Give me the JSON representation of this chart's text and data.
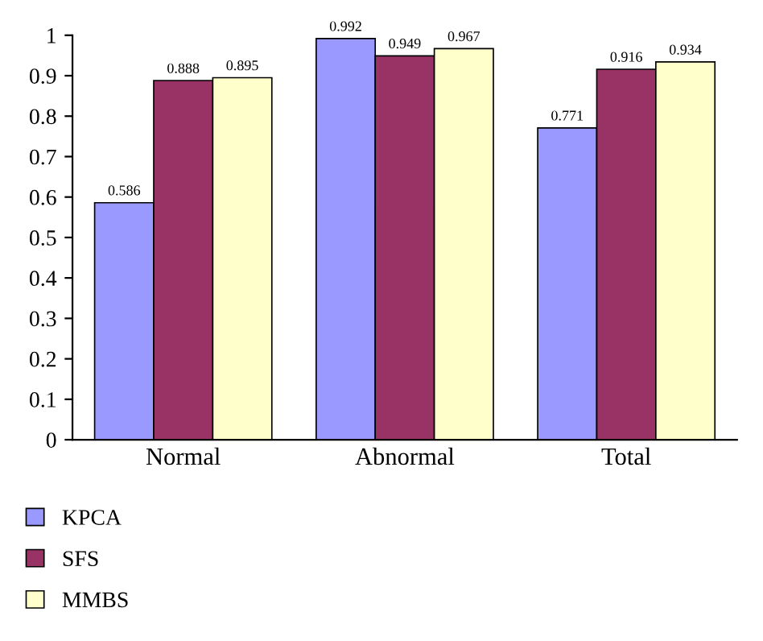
{
  "chart_data": {
    "type": "bar",
    "categories": [
      "Normal",
      "Abnormal",
      "Total"
    ],
    "series": [
      {
        "name": "KPCA",
        "color": "#9999ff",
        "values": [
          0.586,
          0.992,
          0.771
        ]
      },
      {
        "name": "SFS",
        "color": "#993366",
        "values": [
          0.888,
          0.949,
          0.916
        ]
      },
      {
        "name": "MMBS",
        "color": "#ffffcc",
        "values": [
          0.895,
          0.967,
          0.934
        ]
      }
    ],
    "ylim": [
      0,
      1
    ],
    "yticks": [
      0,
      0.1,
      0.2,
      0.3,
      0.4,
      0.5,
      0.6,
      0.7,
      0.8,
      0.9,
      1
    ],
    "data_labels": true,
    "grid": false,
    "legend": "bottom left"
  }
}
